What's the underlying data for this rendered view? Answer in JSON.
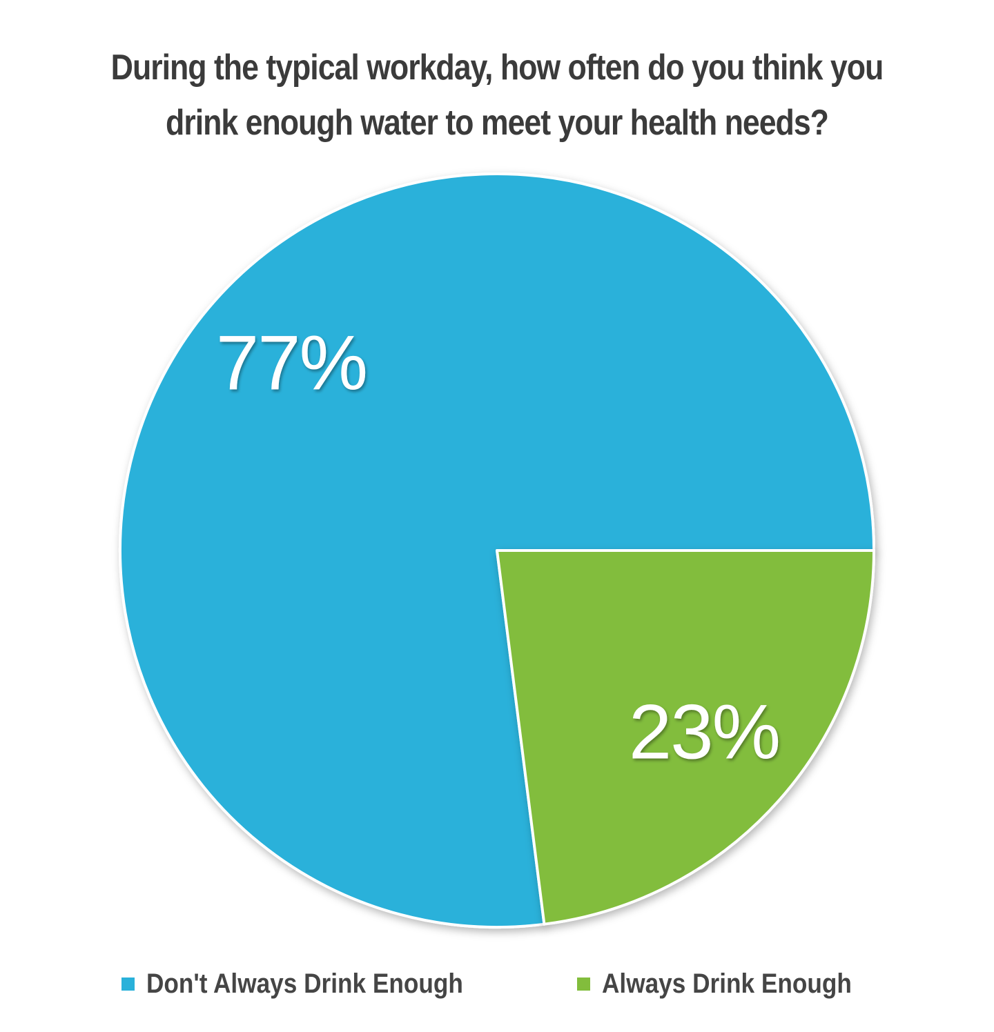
{
  "chart_data": {
    "type": "pie",
    "title_lines": [
      "During the typical workday, how often do you think you",
      "drink enough water to meet your health needs?"
    ],
    "categories": [
      "Don't Always Drink Enough",
      "Always Drink Enough"
    ],
    "values": [
      77,
      23
    ],
    "data_labels": [
      "77%",
      "23%"
    ],
    "colors": [
      "#29b1da",
      "#82bd3c"
    ],
    "legend_position": "bottom"
  }
}
